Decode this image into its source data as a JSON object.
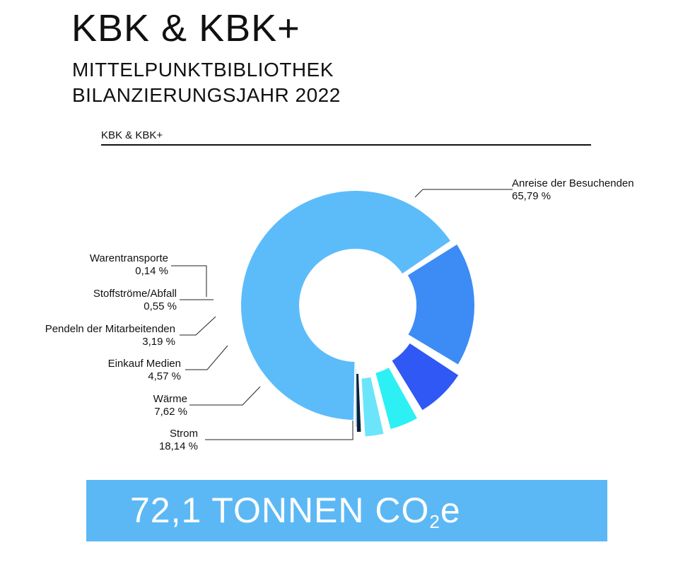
{
  "header": {
    "title": "KBK & KBK+",
    "subtitle_line1": "MITTELPUNKTBIBLIOTHEK",
    "subtitle_line2": "BILANZIERUNGSJAHR 2022"
  },
  "chart_data": {
    "type": "pie",
    "title": "KBK & KBK+",
    "donut": true,
    "unit": "%",
    "slices": [
      {
        "label": "Anreise der Besuchenden",
        "value": 65.79,
        "value_label": "65,79 %",
        "color": "#5cbcfa"
      },
      {
        "label": "Strom",
        "value": 18.14,
        "value_label": "18,14 %",
        "color": "#3d8cf5"
      },
      {
        "label": "Wärme",
        "value": 7.62,
        "value_label": "7,62 %",
        "color": "#3058f5"
      },
      {
        "label": "Einkauf Medien",
        "value": 4.57,
        "value_label": "4,57 %",
        "color": "#2cf0f4"
      },
      {
        "label": "Pendeln der Mitarbeitenden",
        "value": 3.19,
        "value_label": "3,19 %",
        "color": "#6ce5fb"
      },
      {
        "label": "Stoffströme/Abfall",
        "value": 0.55,
        "value_label": "0,55 %",
        "color": "#0a1f3a"
      },
      {
        "label": "Warentransporte",
        "value": 0.14,
        "value_label": "0,14 %",
        "color": "#9ad4f5"
      }
    ]
  },
  "total": {
    "prefix": "72,1 TONNEN CO",
    "subscript": "2",
    "suffix": "e"
  }
}
